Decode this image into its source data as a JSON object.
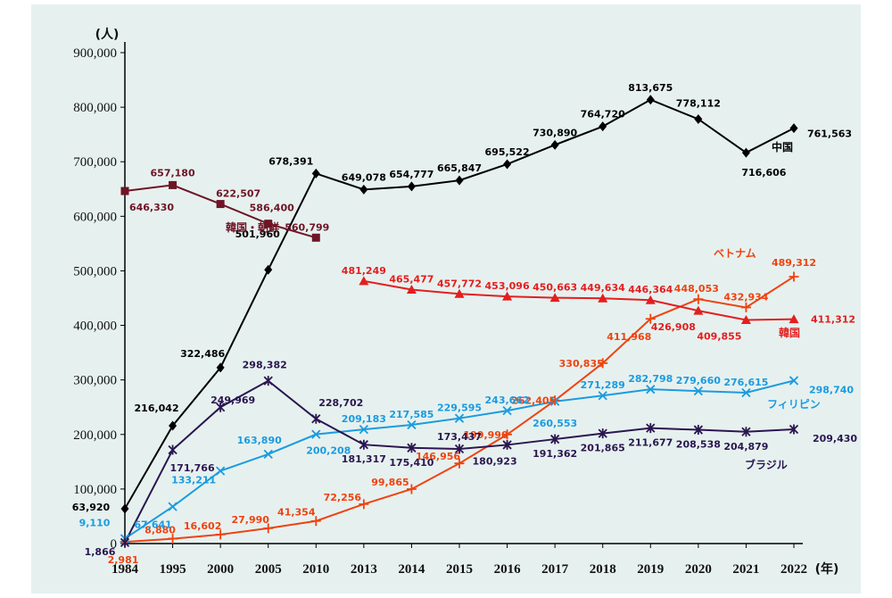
{
  "chart_data": {
    "type": "line",
    "y_unit": "(人)",
    "x_unit": "(年)",
    "ylim": [
      0,
      900000
    ],
    "y_ticks": [
      0,
      100000,
      200000,
      300000,
      400000,
      500000,
      600000,
      700000,
      800000,
      900000
    ],
    "y_tick_labels": [
      "0",
      "100,000",
      "200,000",
      "300,000",
      "400,000",
      "500,000",
      "600,000",
      "700,000",
      "800,000",
      "900,000"
    ],
    "categories": [
      "1984",
      "1995",
      "2000",
      "2005",
      "2010",
      "2013",
      "2014",
      "2015",
      "2016",
      "2017",
      "2018",
      "2019",
      "2020",
      "2021",
      "2022"
    ],
    "series": [
      {
        "name": "中国",
        "color": "#000000",
        "marker": "diamond",
        "values": [
          63920,
          216042,
          322486,
          501960,
          678391,
          649078,
          654777,
          665847,
          695522,
          730890,
          764720,
          813675,
          778112,
          716606,
          761563
        ],
        "labels": [
          "63,920",
          "216,042",
          "322,486",
          "501,960",
          "678,391",
          "649,078",
          "654,777",
          "665,847",
          "695,522",
          "730,890",
          "764,720",
          "813,675",
          "778,112",
          "716,606",
          "761,563"
        ]
      },
      {
        "name": "韓国・朝鮮",
        "color": "#6e1426",
        "marker": "square",
        "values": [
          646330,
          657180,
          622507,
          586400,
          560799,
          null,
          null,
          null,
          null,
          null,
          null,
          null,
          null,
          null,
          null
        ],
        "labels": [
          "646,330",
          "657,180",
          "622,507",
          "586,400",
          "560,799",
          "",
          "",
          "",
          "",
          "",
          "",
          "",
          "",
          "",
          ""
        ]
      },
      {
        "name": "ベトナム",
        "color": "#f0420f",
        "marker": "plus",
        "values": [
          2981,
          8880,
          16602,
          27990,
          41354,
          72256,
          99865,
          146956,
          199990,
          262405,
          330835,
          411968,
          448053,
          432934,
          489312
        ],
        "labels": [
          "2,981",
          "8,880",
          "16,602",
          "27,990",
          "41,354",
          "72,256",
          "99,865",
          "146,956",
          "199,990",
          "262,405",
          "330,835",
          "411,968",
          "448,053",
          "432,934",
          "489,312"
        ]
      },
      {
        "name": "韓国",
        "color": "#e41e1e",
        "marker": "triangle",
        "values": [
          null,
          null,
          null,
          null,
          null,
          481249,
          465477,
          457772,
          453096,
          450663,
          449634,
          446364,
          426908,
          409855,
          411312
        ],
        "labels": [
          "",
          "",
          "",
          "",
          "",
          "481,249",
          "465,477",
          "457,772",
          "453,096",
          "450,663",
          "449,634",
          "446,364",
          "426,908",
          "409,855",
          "411,312"
        ]
      },
      {
        "name": "フィリピン",
        "color": "#1b9be0",
        "marker": "x",
        "values": [
          9110,
          67641,
          133211,
          163890,
          200208,
          209183,
          217585,
          229595,
          243662,
          260553,
          271289,
          282798,
          279660,
          276615,
          298740
        ],
        "labels": [
          "9,110",
          "67,641",
          "133,211",
          "163,890",
          "200,208",
          "209,183",
          "217,585",
          "229,595",
          "243,662",
          "260,553",
          "271,289",
          "282,798",
          "279,660",
          "276,615",
          "298,740"
        ]
      },
      {
        "name": "ブラジル",
        "color": "#2b1650",
        "marker": "star",
        "values": [
          1866,
          171766,
          249969,
          298382,
          228702,
          181317,
          175410,
          173437,
          180923,
          191362,
          201865,
          211677,
          208538,
          204879,
          209430
        ],
        "labels": [
          "1,866",
          "171,766",
          "249,969",
          "298,382",
          "228,702",
          "181,317",
          "175,410",
          "173,437",
          "180,923",
          "191,362",
          "201,865",
          "211,677",
          "208,538",
          "204,879",
          "209,430"
        ]
      }
    ]
  }
}
